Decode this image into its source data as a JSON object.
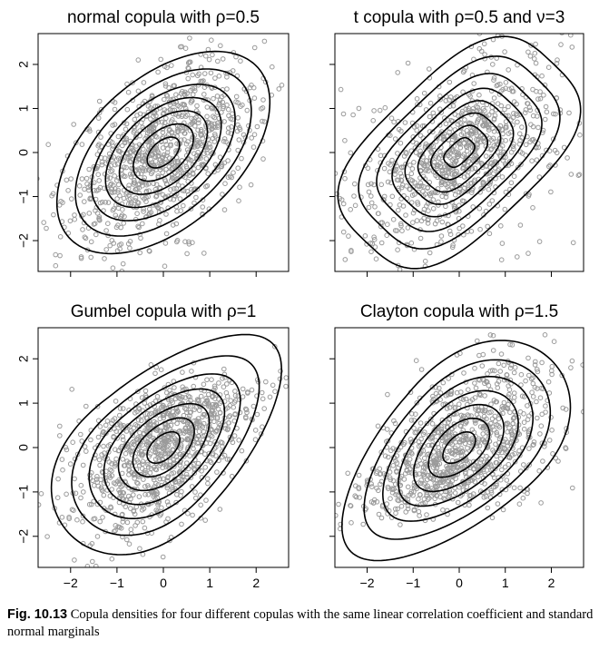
{
  "figure": {
    "caption_label": "Fig. 10.13",
    "caption_text": "Copula densities for four different copulas with the same linear correlation coefficient and standard normal marginals"
  },
  "colors": {
    "points": "#9a9a9a",
    "contours": "#000000",
    "frame": "#000000"
  },
  "chart_data": [
    {
      "type": "scatter",
      "title": "normal copula with ρ=0.5",
      "copula": "normal",
      "overlay": "density-contours",
      "n_points": 1000,
      "xlim": [
        -2.7,
        2.7
      ],
      "ylim": [
        -2.7,
        2.7
      ],
      "x_ticks": [
        -2,
        -1,
        0,
        1,
        2
      ],
      "y_ticks": [
        -2,
        -1,
        0,
        1,
        2
      ],
      "x_tick_labels": [
        "",
        "",
        "",
        "",
        ""
      ],
      "y_tick_labels": [
        "−2",
        "−1",
        "0",
        "1",
        "2"
      ]
    },
    {
      "type": "scatter",
      "title": "t copula with ρ=0.5 and ν=3",
      "copula": "t",
      "overlay": "density-contours",
      "n_points": 1000,
      "xlim": [
        -2.7,
        2.7
      ],
      "ylim": [
        -2.7,
        2.7
      ],
      "x_ticks": [
        -2,
        -1,
        0,
        1,
        2
      ],
      "y_ticks": [
        -2,
        -1,
        0,
        1,
        2
      ],
      "x_tick_labels": [
        "",
        "",
        "",
        "",
        ""
      ],
      "y_tick_labels": [
        "",
        "",
        "",
        "",
        ""
      ]
    },
    {
      "type": "scatter",
      "title": "Gumbel copula with ρ=1",
      "copula": "gumbel",
      "overlay": "density-contours",
      "n_points": 1000,
      "xlim": [
        -2.7,
        2.7
      ],
      "ylim": [
        -2.7,
        2.7
      ],
      "x_ticks": [
        -2,
        -1,
        0,
        1,
        2
      ],
      "y_ticks": [
        -2,
        -1,
        0,
        1,
        2
      ],
      "x_tick_labels": [
        "−2",
        "−1",
        "0",
        "1",
        "2"
      ],
      "y_tick_labels": [
        "−2",
        "−1",
        "0",
        "1",
        "2"
      ]
    },
    {
      "type": "scatter",
      "title": "Clayton copula with ρ=1.5",
      "copula": "clayton",
      "overlay": "density-contours",
      "n_points": 1000,
      "xlim": [
        -2.7,
        2.7
      ],
      "ylim": [
        -2.7,
        2.7
      ],
      "x_ticks": [
        -2,
        -1,
        0,
        1,
        2
      ],
      "y_ticks": [
        -2,
        -1,
        0,
        1,
        2
      ],
      "x_tick_labels": [
        "−2",
        "−1",
        "0",
        "1",
        "2"
      ],
      "y_tick_labels": [
        "",
        "",
        "",
        "",
        ""
      ]
    }
  ]
}
